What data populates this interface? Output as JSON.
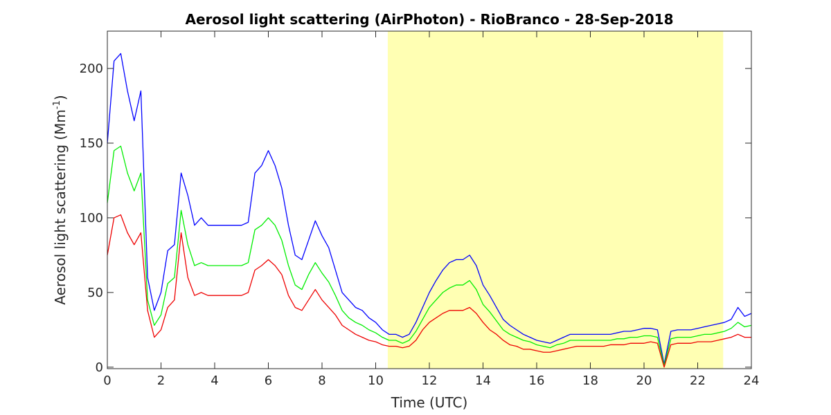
{
  "chart_data": {
    "type": "line",
    "title": "Aerosol light scattering (AirPhoton) - RioBranco - 28-Sep-2018",
    "xlabel": "Time (UTC)",
    "ylabel": {
      "text": "Aerosol light scattering (Mm",
      "sup": "-1",
      "end": ")"
    },
    "x": [
      0,
      0.25,
      0.5,
      0.75,
      1,
      1.25,
      1.5,
      1.75,
      2,
      2.25,
      2.5,
      2.75,
      3,
      3.25,
      3.5,
      3.75,
      4,
      4.25,
      4.5,
      4.75,
      5,
      5.25,
      5.5,
      5.75,
      6,
      6.25,
      6.5,
      6.75,
      7,
      7.25,
      7.5,
      7.75,
      8,
      8.25,
      8.5,
      8.75,
      9,
      9.25,
      9.5,
      9.75,
      10,
      10.25,
      10.5,
      10.75,
      11,
      11.25,
      11.5,
      11.75,
      12,
      12.25,
      12.5,
      12.75,
      13,
      13.25,
      13.5,
      13.75,
      14,
      14.25,
      14.5,
      14.75,
      15,
      15.25,
      15.5,
      15.75,
      16,
      16.25,
      16.5,
      16.75,
      17,
      17.25,
      17.5,
      17.75,
      18,
      18.25,
      18.5,
      18.75,
      19,
      19.25,
      19.5,
      19.75,
      20,
      20.25,
      20.5,
      20.75,
      21,
      21.25,
      21.5,
      21.75,
      22,
      22.25,
      22.5,
      22.75,
      23,
      23.25,
      23.5,
      23.75,
      24
    ],
    "series": [
      {
        "color": "#0000ff",
        "values": [
          150,
          205,
          210,
          185,
          165,
          185,
          60,
          38,
          50,
          78,
          82,
          130,
          115,
          95,
          100,
          95,
          95,
          95,
          95,
          95,
          95,
          97,
          130,
          135,
          145,
          135,
          120,
          95,
          75,
          72,
          85,
          98,
          88,
          80,
          65,
          50,
          45,
          40,
          38,
          33,
          30,
          25,
          22,
          22,
          20,
          22,
          30,
          40,
          50,
          58,
          65,
          70,
          72,
          72,
          75,
          68,
          55,
          48,
          40,
          32,
          28,
          25,
          22,
          20,
          18,
          17,
          16,
          18,
          20,
          22,
          22,
          22,
          22,
          22,
          22,
          22,
          23,
          24,
          24,
          25,
          26,
          26,
          25,
          2,
          24,
          25,
          25,
          25,
          26,
          27,
          28,
          29,
          30,
          32,
          40,
          34,
          36
        ]
      },
      {
        "color": "#00ee00",
        "values": [
          110,
          145,
          148,
          130,
          118,
          130,
          45,
          28,
          35,
          56,
          60,
          105,
          82,
          68,
          70,
          68,
          68,
          68,
          68,
          68,
          68,
          70,
          92,
          95,
          100,
          95,
          85,
          68,
          55,
          52,
          62,
          70,
          63,
          57,
          48,
          38,
          33,
          30,
          28,
          25,
          23,
          20,
          18,
          18,
          16,
          18,
          24,
          32,
          40,
          45,
          50,
          53,
          55,
          55,
          58,
          52,
          42,
          37,
          31,
          25,
          22,
          20,
          18,
          17,
          15,
          14,
          13,
          15,
          16,
          18,
          18,
          18,
          18,
          18,
          18,
          18,
          19,
          19,
          20,
          20,
          21,
          21,
          20,
          1,
          19,
          20,
          20,
          20,
          21,
          22,
          22,
          23,
          24,
          26,
          30,
          27,
          28
        ]
      },
      {
        "color": "#ee0000",
        "values": [
          75,
          100,
          102,
          90,
          82,
          90,
          38,
          20,
          25,
          40,
          45,
          90,
          60,
          48,
          50,
          48,
          48,
          48,
          48,
          48,
          48,
          50,
          65,
          68,
          72,
          68,
          62,
          48,
          40,
          38,
          45,
          52,
          45,
          40,
          35,
          28,
          25,
          22,
          20,
          18,
          17,
          15,
          14,
          14,
          13,
          14,
          18,
          25,
          30,
          33,
          36,
          38,
          38,
          38,
          40,
          36,
          30,
          25,
          22,
          18,
          15,
          14,
          12,
          12,
          11,
          10,
          10,
          11,
          12,
          13,
          14,
          14,
          14,
          14,
          14,
          15,
          15,
          15,
          16,
          16,
          16,
          17,
          16,
          0,
          15,
          16,
          16,
          16,
          17,
          17,
          17,
          18,
          19,
          20,
          22,
          20,
          20
        ]
      }
    ],
    "shaded_region": {
      "x": [
        10.45,
        22.95
      ],
      "color": "#ffffb3"
    },
    "xlim": [
      0,
      24
    ],
    "xticks": [
      0,
      2,
      4,
      6,
      8,
      10,
      12,
      14,
      16,
      18,
      20,
      22,
      24
    ],
    "ylim": [
      -1,
      225
    ],
    "yticks": [
      0,
      50,
      100,
      150,
      200
    ],
    "grid": false
  }
}
